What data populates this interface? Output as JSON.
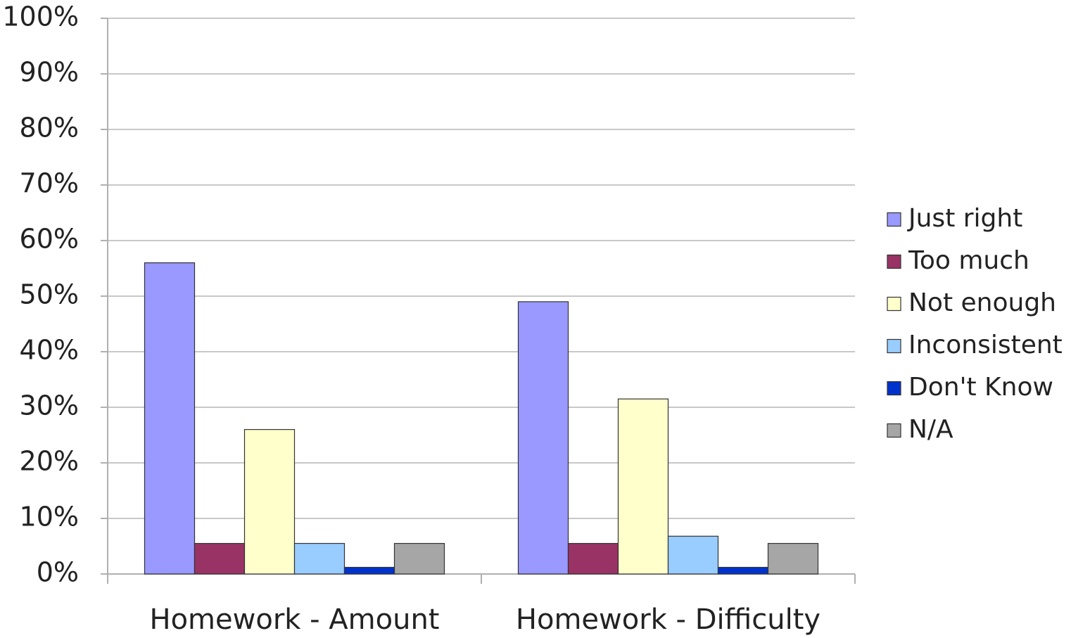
{
  "chart_data": {
    "type": "bar",
    "title": "",
    "xlabel": "",
    "ylabel": "",
    "categories": [
      "Homework - Amount",
      "Homework - Difficulty"
    ],
    "series": [
      {
        "name": "Just right",
        "color": "#9999ff",
        "values": [
          56,
          49
        ]
      },
      {
        "name": "Too much",
        "color": "#993366",
        "values": [
          5.5,
          5.5
        ]
      },
      {
        "name": "Not enough",
        "color": "#ffffcc",
        "values": [
          26,
          31.5
        ]
      },
      {
        "name": "Inconsistent",
        "color": "#99ccff",
        "values": [
          5.5,
          6.8
        ]
      },
      {
        "name": "Don't Know",
        "color": "#0033cc",
        "values": [
          1.2,
          1.2
        ]
      },
      {
        "name": "N/A",
        "color": "#a6a6a6",
        "values": [
          5.5,
          5.5
        ]
      }
    ],
    "ylim": [
      0,
      100
    ],
    "yticks": [
      "0%",
      "10%",
      "20%",
      "30%",
      "40%",
      "50%",
      "60%",
      "70%",
      "80%",
      "90%",
      "100%"
    ],
    "grid": true,
    "legend_position": "right"
  }
}
